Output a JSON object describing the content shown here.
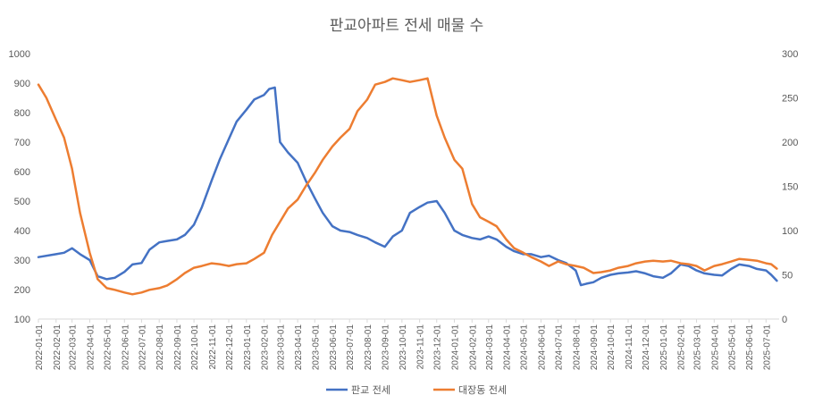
{
  "chart_data": {
    "type": "line",
    "title": "판교아파트 전세 매물 수",
    "y_left": {
      "lim": [
        100,
        1000
      ],
      "ticks": [
        100,
        200,
        300,
        400,
        500,
        600,
        700,
        800,
        900,
        1000
      ],
      "tick_labels": [
        "100",
        "200",
        "300",
        "400",
        "500",
        "600",
        "700",
        "800",
        "900",
        "1000"
      ]
    },
    "y_right": {
      "lim": [
        0,
        300
      ],
      "ticks": [
        0,
        50,
        100,
        150,
        200,
        250,
        300
      ],
      "tick_labels": [
        "0",
        "50",
        "100",
        "150",
        "200",
        "250",
        "300"
      ]
    },
    "x_tick_labels": [
      "2022-01-01",
      "2022-02-01",
      "2022-03-01",
      "2022-04-01",
      "2022-05-01",
      "2022-06-01",
      "2022-07-01",
      "2022-08-01",
      "2022-09-01",
      "2022-10-01",
      "2022-11-01",
      "2022-12-01",
      "2023-01-01",
      "2023-02-01",
      "2023-03-01",
      "2023-04-01",
      "2023-05-01",
      "2023-06-01",
      "2023-07-01",
      "2023-08-01",
      "2023-09-01",
      "2023-10-01",
      "2023-11-01",
      "2023-12-01",
      "2024-01-01",
      "2024-02-01",
      "2024-03-01",
      "2024-04-01",
      "2024-05-01",
      "2024-06-01",
      "2024-07-01",
      "2024-08-01",
      "2024-09-01",
      "2024-10-01",
      "2024-11-01",
      "2024-12-01",
      "2025-01-01",
      "2025-02-01",
      "2025-03-01",
      "2025-04-01",
      "2025-05-01",
      "2025-06-01",
      "2025-07-01"
    ],
    "grid": false,
    "legend_position": "bottom",
    "series": [
      {
        "name": "판교 전세",
        "axis": "left",
        "color": "#4472C4",
        "x": [
          "2022-01-01",
          "2022-02-01",
          "2022-02-15",
          "2022-03-01",
          "2022-03-15",
          "2022-04-01",
          "2022-04-15",
          "2022-05-01",
          "2022-05-15",
          "2022-06-01",
          "2022-06-15",
          "2022-07-01",
          "2022-07-15",
          "2022-08-01",
          "2022-08-15",
          "2022-09-01",
          "2022-09-15",
          "2022-10-01",
          "2022-10-15",
          "2022-11-01",
          "2022-11-15",
          "2022-12-01",
          "2022-12-15",
          "2023-01-01",
          "2023-01-15",
          "2023-02-01",
          "2023-02-10",
          "2023-02-20",
          "2023-03-01",
          "2023-03-15",
          "2023-04-01",
          "2023-04-15",
          "2023-05-01",
          "2023-05-15",
          "2023-06-01",
          "2023-06-15",
          "2023-07-01",
          "2023-07-15",
          "2023-08-01",
          "2023-08-15",
          "2023-09-01",
          "2023-09-15",
          "2023-10-01",
          "2023-10-15",
          "2023-11-01",
          "2023-11-15",
          "2023-12-01",
          "2023-12-15",
          "2024-01-01",
          "2024-01-15",
          "2024-02-01",
          "2024-02-15",
          "2024-03-01",
          "2024-03-15",
          "2024-04-01",
          "2024-04-15",
          "2024-05-01",
          "2024-05-15",
          "2024-06-01",
          "2024-06-15",
          "2024-07-01",
          "2024-07-15",
          "2024-08-01",
          "2024-08-10",
          "2024-08-20",
          "2024-09-01",
          "2024-09-15",
          "2024-10-01",
          "2024-10-15",
          "2024-11-01",
          "2024-11-15",
          "2024-12-01",
          "2024-12-15",
          "2025-01-01",
          "2025-01-15",
          "2025-02-01",
          "2025-02-15",
          "2025-03-01",
          "2025-03-15",
          "2025-04-01",
          "2025-04-15",
          "2025-05-01",
          "2025-05-15",
          "2025-06-01",
          "2025-06-15",
          "2025-07-01",
          "2025-07-10",
          "2025-07-20"
        ],
        "values": [
          310,
          320,
          325,
          340,
          320,
          300,
          245,
          235,
          240,
          260,
          285,
          290,
          335,
          360,
          365,
          370,
          385,
          420,
          480,
          570,
          640,
          710,
          770,
          810,
          845,
          860,
          880,
          885,
          700,
          665,
          630,
          570,
          510,
          460,
          415,
          400,
          395,
          385,
          375,
          360,
          345,
          380,
          400,
          460,
          480,
          495,
          500,
          460,
          400,
          385,
          375,
          370,
          380,
          370,
          345,
          330,
          320,
          320,
          310,
          315,
          300,
          290,
          265,
          215,
          220,
          225,
          240,
          250,
          255,
          258,
          262,
          255,
          245,
          240,
          255,
          285,
          280,
          265,
          255,
          250,
          248,
          270,
          285,
          280,
          270,
          265,
          250,
          230
        ]
      },
      {
        "name": "대장동 전세",
        "axis": "right",
        "color": "#ED7D31",
        "x": [
          "2022-01-01",
          "2022-01-15",
          "2022-02-01",
          "2022-02-15",
          "2022-03-01",
          "2022-03-15",
          "2022-04-01",
          "2022-04-15",
          "2022-05-01",
          "2022-05-15",
          "2022-06-01",
          "2022-06-15",
          "2022-07-01",
          "2022-07-15",
          "2022-08-01",
          "2022-08-15",
          "2022-09-01",
          "2022-09-15",
          "2022-10-01",
          "2022-10-15",
          "2022-11-01",
          "2022-11-15",
          "2022-12-01",
          "2022-12-15",
          "2023-01-01",
          "2023-01-15",
          "2023-02-01",
          "2023-02-15",
          "2023-03-01",
          "2023-03-15",
          "2023-04-01",
          "2023-04-15",
          "2023-05-01",
          "2023-05-15",
          "2023-06-01",
          "2023-06-15",
          "2023-07-01",
          "2023-07-15",
          "2023-08-01",
          "2023-08-15",
          "2023-09-01",
          "2023-09-15",
          "2023-10-01",
          "2023-10-15",
          "2023-11-01",
          "2023-11-15",
          "2023-12-01",
          "2023-12-15",
          "2024-01-01",
          "2024-01-15",
          "2024-02-01",
          "2024-02-15",
          "2024-03-01",
          "2024-03-15",
          "2024-04-01",
          "2024-04-15",
          "2024-05-01",
          "2024-05-15",
          "2024-06-01",
          "2024-06-15",
          "2024-07-01",
          "2024-07-15",
          "2024-08-01",
          "2024-08-15",
          "2024-09-01",
          "2024-09-15",
          "2024-10-01",
          "2024-10-15",
          "2024-11-01",
          "2024-11-15",
          "2024-12-01",
          "2024-12-15",
          "2025-01-01",
          "2025-01-15",
          "2025-02-01",
          "2025-02-15",
          "2025-03-01",
          "2025-03-15",
          "2025-04-01",
          "2025-04-15",
          "2025-05-01",
          "2025-05-15",
          "2025-06-01",
          "2025-06-15",
          "2025-07-01",
          "2025-07-10",
          "2025-07-20"
        ],
        "values": [
          265,
          250,
          225,
          205,
          170,
          120,
          75,
          45,
          35,
          33,
          30,
          28,
          30,
          33,
          35,
          38,
          45,
          52,
          58,
          60,
          63,
          62,
          60,
          62,
          63,
          68,
          75,
          95,
          110,
          125,
          135,
          150,
          165,
          180,
          195,
          205,
          215,
          235,
          248,
          265,
          268,
          272,
          270,
          268,
          270,
          272,
          230,
          205,
          180,
          170,
          130,
          115,
          110,
          105,
          90,
          80,
          75,
          70,
          65,
          60,
          65,
          62,
          60,
          58,
          52,
          53,
          55,
          58,
          60,
          63,
          65,
          66,
          65,
          66,
          63,
          62,
          60,
          55,
          60,
          62,
          65,
          68,
          67,
          66,
          63,
          62,
          57
        ]
      }
    ]
  }
}
